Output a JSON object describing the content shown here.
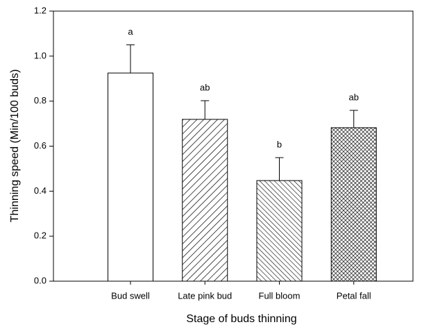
{
  "chart_data": {
    "type": "bar",
    "x_label": "Stage of buds thinning",
    "y_label": "Thinning speed (Min/100 buds)",
    "categories": [
      "Bud swell",
      "Late pink bud",
      "Full bloom",
      "Petal fall"
    ],
    "values": [
      0.925,
      0.719,
      0.447,
      0.682
    ],
    "errors": [
      0.125,
      0.083,
      0.102,
      0.077
    ],
    "annotations": [
      "a",
      "ab",
      "b",
      "ab"
    ],
    "patterns": [
      "none",
      "forward-diagonal",
      "backward-diagonal",
      "crosshatch"
    ],
    "color": "#000000",
    "ylim": [
      0,
      1.2
    ],
    "yticks": [
      {
        "value": 0,
        "label": "0.0"
      },
      0.2,
      0.4,
      0.6,
      0.8,
      {
        "value": 1,
        "label": "1.0"
      },
      1.2
    ]
  }
}
